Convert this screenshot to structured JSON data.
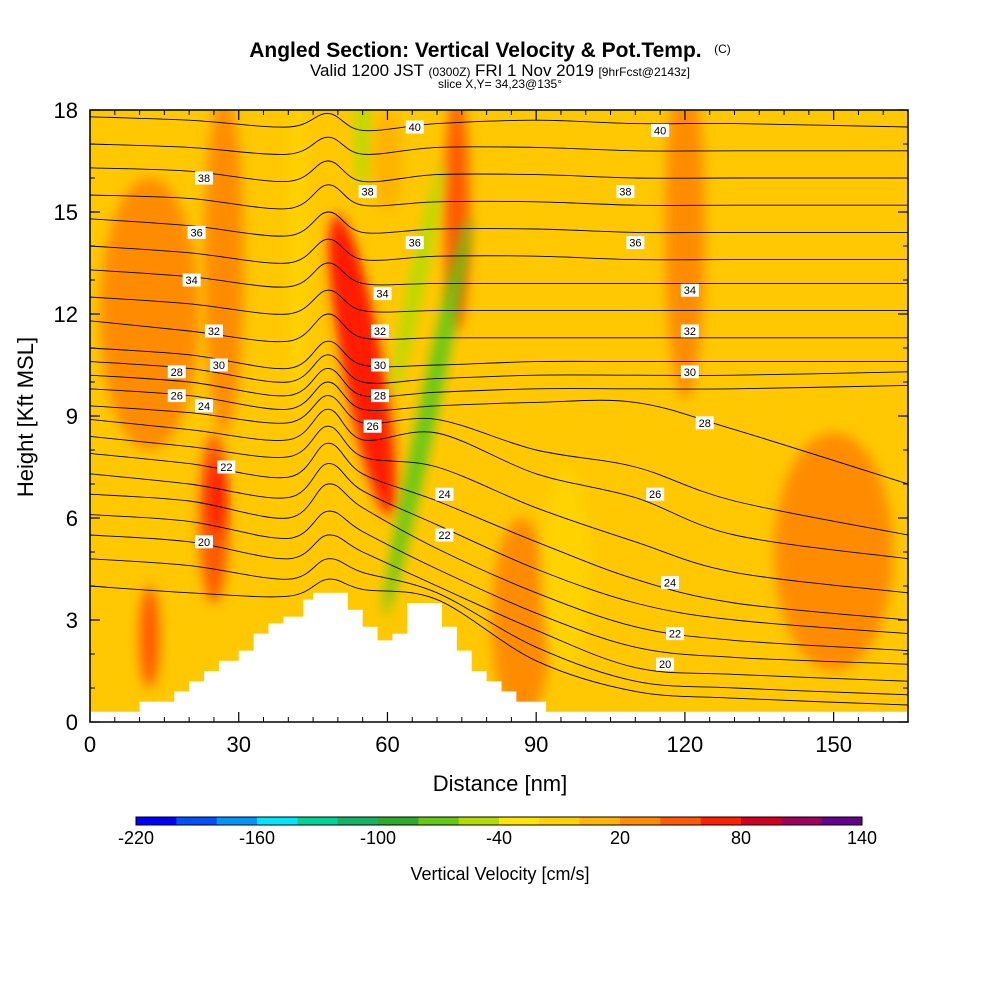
{
  "chart_data": {
    "type": "heatmap",
    "title": "Angled Section: Vertical Velocity & Pot.Temp.",
    "title_unit": "(C)",
    "subtitle_parts": {
      "valid": "Valid 1200 JST",
      "utc": "(0300Z)",
      "date": "FRI 1 Nov 2019",
      "forecast": "[9hrFcst@2143z]"
    },
    "slice_text": "slice X,Y= 34,23@135°",
    "xlabel": "Distance [nm]",
    "ylabel": "Height [Kft MSL]",
    "xlim": [
      0,
      165
    ],
    "ylim": [
      0,
      18
    ],
    "x_ticks": [
      0,
      30,
      60,
      90,
      120,
      150
    ],
    "y_ticks": [
      0,
      3,
      6,
      9,
      12,
      15,
      18
    ],
    "x_tick_labels": [
      "0",
      "30",
      "60",
      "90",
      "120",
      "150"
    ],
    "y_tick_labels": [
      "0",
      "3",
      "6",
      "9",
      "12",
      "15",
      "18"
    ],
    "colorbar": {
      "title": "Vertical Velocity [cm/s]",
      "min": -220,
      "max": 140,
      "step": 20,
      "tick_values": [
        -220,
        -160,
        -100,
        -40,
        20,
        80,
        140
      ],
      "tick_labels": [
        "-220",
        "-160",
        "-100",
        "-40",
        "20",
        "80",
        "140"
      ],
      "colors": [
        "#0000ff",
        "#0050ff",
        "#0096ff",
        "#00e6ff",
        "#00d296",
        "#14b464",
        "#2daa28",
        "#64c814",
        "#b4dc00",
        "#ffe600",
        "#ffd200",
        "#ffb400",
        "#ff8c00",
        "#ff5a00",
        "#ff1e00",
        "#d2001e",
        "#a0005a",
        "#64008c"
      ]
    },
    "terrain": [
      [
        0,
        0.3
      ],
      [
        10,
        0.3
      ],
      [
        10,
        0.6
      ],
      [
        17,
        0.6
      ],
      [
        17,
        0.9
      ],
      [
        20,
        0.9
      ],
      [
        20,
        1.2
      ],
      [
        23,
        1.2
      ],
      [
        23,
        1.5
      ],
      [
        26,
        1.5
      ],
      [
        26,
        1.8
      ],
      [
        30,
        1.8
      ],
      [
        30,
        2.1
      ],
      [
        33,
        2.1
      ],
      [
        33,
        2.6
      ],
      [
        36,
        2.6
      ],
      [
        36,
        2.9
      ],
      [
        39,
        2.9
      ],
      [
        39,
        3.1
      ],
      [
        43,
        3.1
      ],
      [
        43,
        3.6
      ],
      [
        45,
        3.6
      ],
      [
        45,
        3.8
      ],
      [
        52,
        3.8
      ],
      [
        52,
        3.3
      ],
      [
        55,
        3.3
      ],
      [
        55,
        2.8
      ],
      [
        58,
        2.8
      ],
      [
        58,
        2.4
      ],
      [
        61,
        2.4
      ],
      [
        61,
        2.6
      ],
      [
        64,
        2.6
      ],
      [
        64,
        3.5
      ],
      [
        71,
        3.5
      ],
      [
        71,
        2.8
      ],
      [
        74,
        2.8
      ],
      [
        74,
        2.1
      ],
      [
        77,
        2.1
      ],
      [
        77,
        1.5
      ],
      [
        80,
        1.5
      ],
      [
        80,
        1.2
      ],
      [
        83,
        1.2
      ],
      [
        83,
        0.9
      ],
      [
        86,
        0.9
      ],
      [
        86,
        0.6
      ],
      [
        92,
        0.6
      ],
      [
        92,
        0.3
      ],
      [
        165,
        0.3
      ]
    ],
    "theta_contours": [
      {
        "value": 40,
        "x": [
          0,
          20,
          40,
          48,
          55,
          70,
          90,
          110,
          130,
          165
        ],
        "y": [
          17.8,
          17.7,
          17.5,
          17.9,
          17.4,
          17.6,
          17.7,
          17.6,
          17.6,
          17.5
        ]
      },
      {
        "value": 39,
        "x": [
          0,
          20,
          40,
          48,
          55,
          70,
          90,
          110,
          130,
          165
        ],
        "y": [
          17.0,
          16.9,
          16.7,
          17.2,
          16.7,
          16.9,
          16.9,
          16.8,
          16.8,
          16.8
        ]
      },
      {
        "value": 38,
        "x": [
          0,
          20,
          40,
          48,
          55,
          70,
          90,
          110,
          130,
          165
        ],
        "y": [
          16.3,
          16.2,
          15.9,
          16.5,
          15.9,
          16.1,
          16.1,
          16.0,
          16.0,
          16.0
        ]
      },
      {
        "value": 37,
        "x": [
          0,
          20,
          40,
          48,
          55,
          70,
          90,
          110,
          130,
          165
        ],
        "y": [
          15.5,
          15.4,
          15.1,
          15.8,
          15.2,
          15.3,
          15.3,
          15.2,
          15.2,
          15.2
        ]
      },
      {
        "value": 36,
        "x": [
          0,
          20,
          40,
          48,
          55,
          70,
          90,
          110,
          130,
          165
        ],
        "y": [
          14.8,
          14.6,
          14.3,
          15.0,
          14.4,
          14.5,
          14.5,
          14.4,
          14.4,
          14.4
        ]
      },
      {
        "value": 35,
        "x": [
          0,
          20,
          40,
          48,
          55,
          70,
          90,
          110,
          130,
          165
        ],
        "y": [
          14.0,
          13.8,
          13.5,
          14.2,
          13.6,
          13.7,
          13.7,
          13.6,
          13.6,
          13.6
        ]
      },
      {
        "value": 34,
        "x": [
          0,
          20,
          40,
          48,
          55,
          70,
          90,
          110,
          130,
          165
        ],
        "y": [
          13.3,
          13.1,
          12.8,
          13.5,
          12.9,
          12.9,
          12.9,
          12.9,
          12.9,
          12.9
        ]
      },
      {
        "value": 33,
        "x": [
          0,
          20,
          40,
          48,
          55,
          70,
          90,
          110,
          130,
          165
        ],
        "y": [
          12.5,
          12.3,
          12.0,
          12.7,
          12.1,
          12.1,
          12.1,
          12.1,
          12.1,
          12.1
        ]
      },
      {
        "value": 32,
        "x": [
          0,
          20,
          40,
          48,
          55,
          70,
          90,
          110,
          130,
          165
        ],
        "y": [
          11.8,
          11.5,
          11.2,
          12.0,
          11.3,
          11.3,
          11.3,
          11.3,
          11.3,
          11.3
        ]
      },
      {
        "value": 31,
        "x": [
          0,
          20,
          40,
          48,
          55,
          70,
          90,
          110,
          130,
          165
        ],
        "y": [
          11.0,
          10.8,
          10.4,
          11.2,
          10.5,
          10.5,
          10.6,
          10.6,
          10.6,
          10.6
        ]
      },
      {
        "value": 30,
        "x": [
          0,
          20,
          40,
          48,
          55,
          70,
          90,
          110,
          130,
          165
        ],
        "y": [
          10.6,
          10.4,
          10.0,
          10.8,
          10.0,
          10.1,
          10.2,
          10.2,
          10.2,
          10.3
        ]
      },
      {
        "value": 29,
        "x": [
          0,
          20,
          40,
          48,
          55,
          70,
          90,
          110,
          130,
          165
        ],
        "y": [
          10.2,
          10.0,
          9.6,
          10.4,
          9.6,
          9.7,
          9.8,
          9.8,
          9.8,
          9.9
        ]
      },
      {
        "value": 28,
        "x": [
          0,
          20,
          40,
          48,
          55,
          70,
          90,
          110,
          130,
          165
        ],
        "y": [
          9.8,
          9.6,
          9.2,
          10.0,
          9.2,
          9.3,
          9.4,
          9.4,
          8.6,
          7.0
        ]
      },
      {
        "value": 27,
        "x": [
          0,
          20,
          40,
          48,
          55,
          70,
          90,
          110,
          130,
          165
        ],
        "y": [
          9.3,
          9.1,
          8.8,
          9.6,
          8.8,
          8.9,
          8.0,
          7.5,
          6.5,
          5.5
        ]
      },
      {
        "value": 26,
        "x": [
          0,
          20,
          40,
          48,
          55,
          70,
          90,
          110,
          130,
          165
        ],
        "y": [
          8.9,
          8.6,
          8.3,
          9.2,
          8.3,
          8.5,
          7.3,
          6.6,
          5.5,
          4.8
        ]
      },
      {
        "value": 25,
        "x": [
          0,
          20,
          40,
          48,
          55,
          70,
          90,
          110,
          130,
          165
        ],
        "y": [
          8.4,
          8.1,
          7.8,
          8.7,
          7.8,
          7.5,
          6.3,
          5.3,
          4.4,
          3.8
        ]
      },
      {
        "value": 24,
        "x": [
          0,
          20,
          40,
          48,
          55,
          70,
          90,
          110,
          130,
          165
        ],
        "y": [
          7.9,
          7.6,
          7.2,
          8.2,
          7.3,
          6.5,
          5.3,
          4.2,
          3.5,
          3.0
        ]
      },
      {
        "value": 23,
        "x": [
          0,
          20,
          40,
          48,
          55,
          70,
          90,
          110,
          130,
          165
        ],
        "y": [
          7.3,
          7.0,
          6.6,
          7.6,
          6.8,
          5.8,
          4.5,
          3.5,
          3.0,
          2.6
        ]
      },
      {
        "value": 22,
        "x": [
          0,
          20,
          40,
          48,
          55,
          70,
          90,
          110,
          130,
          165
        ],
        "y": [
          6.7,
          6.5,
          6.0,
          7.0,
          6.3,
          5.1,
          3.8,
          2.8,
          2.4,
          2.1
        ]
      },
      {
        "value": 21,
        "x": [
          0,
          20,
          40,
          48,
          55,
          70,
          90,
          110,
          130,
          165
        ],
        "y": [
          6.1,
          5.9,
          5.4,
          6.2,
          5.6,
          4.5,
          3.2,
          2.2,
          1.9,
          1.7
        ]
      },
      {
        "value": 20,
        "x": [
          0,
          20,
          40,
          48,
          55,
          70,
          90,
          110,
          130,
          165
        ],
        "y": [
          5.5,
          5.3,
          4.8,
          5.5,
          5.0,
          4.0,
          2.7,
          1.6,
          1.4,
          1.2
        ]
      },
      {
        "value": 19,
        "x": [
          0,
          20,
          40,
          48,
          55,
          70,
          90,
          110,
          130,
          165
        ],
        "y": [
          4.8,
          4.6,
          4.2,
          4.8,
          4.4,
          3.8,
          2.2,
          1.2,
          1.0,
          0.8
        ]
      },
      {
        "value": 18,
        "x": [
          0,
          20,
          40,
          48,
          55,
          70,
          90,
          110,
          130,
          165
        ],
        "y": [
          4.0,
          3.8,
          3.7,
          4.2,
          3.9,
          3.6,
          1.8,
          0.9,
          0.7,
          0.5
        ]
      }
    ],
    "contour_labels": [
      {
        "text": "40",
        "x": 65.5,
        "y": 17.5
      },
      {
        "text": "40",
        "x": 115,
        "y": 17.4
      },
      {
        "text": "38",
        "x": 23,
        "y": 16.0
      },
      {
        "text": "38",
        "x": 56,
        "y": 15.6
      },
      {
        "text": "38",
        "x": 108,
        "y": 15.6
      },
      {
        "text": "36",
        "x": 21.5,
        "y": 14.4
      },
      {
        "text": "36",
        "x": 65.5,
        "y": 14.1
      },
      {
        "text": "36",
        "x": 110,
        "y": 14.1
      },
      {
        "text": "34",
        "x": 20.5,
        "y": 13.0
      },
      {
        "text": "34",
        "x": 59,
        "y": 12.6
      },
      {
        "text": "34",
        "x": 121,
        "y": 12.7
      },
      {
        "text": "32",
        "x": 25,
        "y": 11.5
      },
      {
        "text": "32",
        "x": 58.5,
        "y": 11.5
      },
      {
        "text": "32",
        "x": 121,
        "y": 11.5
      },
      {
        "text": "30",
        "x": 26,
        "y": 10.5
      },
      {
        "text": "30",
        "x": 58.5,
        "y": 10.5
      },
      {
        "text": "30",
        "x": 121,
        "y": 10.3
      },
      {
        "text": "28",
        "x": 17.5,
        "y": 10.3
      },
      {
        "text": "28",
        "x": 58.5,
        "y": 9.6
      },
      {
        "text": "28",
        "x": 124,
        "y": 8.8
      },
      {
        "text": "26",
        "x": 17.5,
        "y": 9.6
      },
      {
        "text": "26",
        "x": 57,
        "y": 8.7
      },
      {
        "text": "26",
        "x": 114,
        "y": 6.7
      },
      {
        "text": "24",
        "x": 23,
        "y": 9.3
      },
      {
        "text": "24",
        "x": 71.5,
        "y": 6.7
      },
      {
        "text": "24",
        "x": 117,
        "y": 4.1
      },
      {
        "text": "22",
        "x": 27.5,
        "y": 7.5
      },
      {
        "text": "22",
        "x": 71.5,
        "y": 5.5
      },
      {
        "text": "22",
        "x": 118,
        "y": 2.6
      },
      {
        "text": "20",
        "x": 23,
        "y": 5.3
      },
      {
        "text": "20",
        "x": 116,
        "y": 1.7
      }
    ],
    "velocity_blobs": [
      {
        "cx": 55,
        "cy": 10.5,
        "rx": 4,
        "ry": 4.5,
        "value": 60,
        "rot": -10
      },
      {
        "cx": 53,
        "cy": 12,
        "rx": 2,
        "ry": 2.5,
        "value": 70,
        "rot": -10
      },
      {
        "cx": 74,
        "cy": 15.0,
        "rx": 2.5,
        "ry": 3.5,
        "value": 40,
        "rot": 0
      },
      {
        "cx": 25,
        "cy": 6.0,
        "rx": 3,
        "ry": 2.5,
        "value": 40,
        "rot": 0
      },
      {
        "cx": 25.5,
        "cy": 6.6,
        "rx": 1.5,
        "ry": 1.1,
        "value": 60,
        "rot": 0
      },
      {
        "cx": 68,
        "cy": 9.0,
        "rx": 1.8,
        "ry": 6,
        "value": -80,
        "rot": 12
      },
      {
        "cx": 66,
        "cy": 13.0,
        "rx": 1.5,
        "ry": 3.5,
        "value": -60,
        "rot": 12
      },
      {
        "cx": 55,
        "cy": 17.3,
        "rx": 1.5,
        "ry": 1.6,
        "value": -60,
        "rot": 0
      },
      {
        "cx": 42,
        "cy": 14.0,
        "rx": 2,
        "ry": 5,
        "value": -20,
        "rot": 0
      },
      {
        "cx": 27,
        "cy": 13.5,
        "rx": 4,
        "ry": 5,
        "value": 20,
        "rot": 0
      },
      {
        "cx": 120,
        "cy": 14.5,
        "rx": 4,
        "ry": 5,
        "value": 20,
        "rot": 0
      },
      {
        "cx": 150,
        "cy": 5.0,
        "rx": 12,
        "ry": 3.5,
        "value": 20,
        "rot": 0
      },
      {
        "cx": 87,
        "cy": 3.0,
        "rx": 6,
        "ry": 3,
        "value": 20,
        "rot": 0
      },
      {
        "cx": 12,
        "cy": 12.0,
        "rx": 10,
        "ry": 4,
        "value": 20,
        "rot": 0
      },
      {
        "cx": 12,
        "cy": 2.5,
        "rx": 2,
        "ry": 1.5,
        "value": 40,
        "rot": 0
      },
      {
        "cx": 96,
        "cy": 4.5,
        "rx": 5,
        "ry": 3,
        "value": -20,
        "rot": 0
      },
      {
        "cx": 60,
        "cy": 16.5,
        "rx": 3,
        "ry": 1.5,
        "value": 0,
        "rot": 0
      }
    ]
  }
}
